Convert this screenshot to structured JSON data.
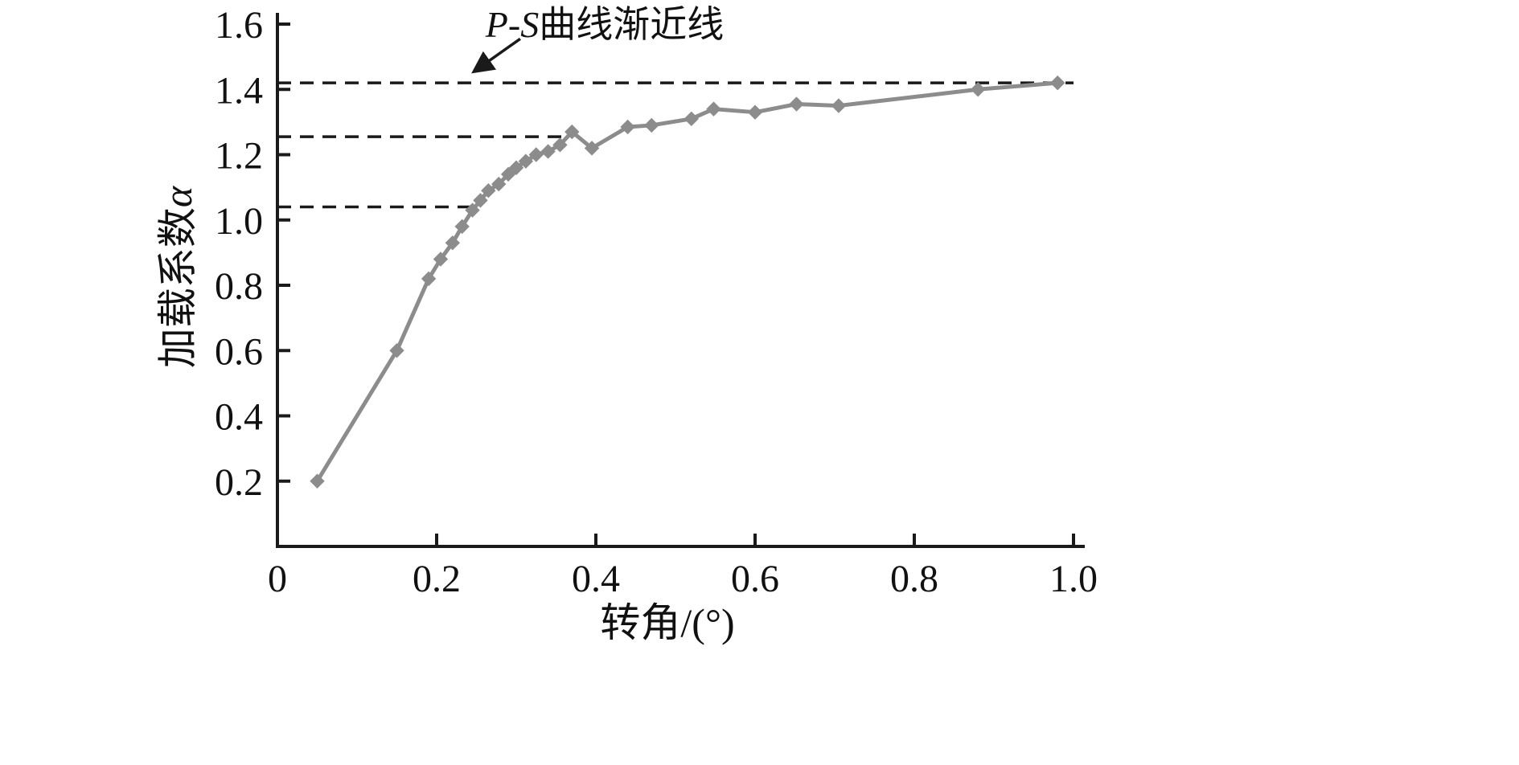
{
  "chart_data": {
    "type": "line",
    "title": "",
    "xlabel": "转角/(°)",
    "ylabel": "加载系数α",
    "ylabel_main": "加载系数",
    "ylabel_symbol": "α",
    "xlim": [
      0,
      1.0
    ],
    "ylim": [
      0,
      1.6
    ],
    "x_tick_values": [
      0,
      0.2,
      0.4,
      0.6,
      0.8,
      1.0
    ],
    "x_tick_labels": [
      "0",
      "0.2",
      "0.4",
      "0.6",
      "0.8",
      "1.0"
    ],
    "y_tick_values": [
      0.2,
      0.4,
      0.6,
      0.8,
      1.0,
      1.2,
      1.4,
      1.6
    ],
    "y_tick_labels": [
      "0.2",
      "0.4",
      "0.6",
      "0.8",
      "1.0",
      "1.2",
      "1.4",
      "1.6"
    ],
    "grid": false,
    "legend": "none",
    "annotation": {
      "italic": "P-S",
      "rest": "曲线渐近线",
      "full_text": "P-S曲线渐近线",
      "arrow_tail": [
        0.305,
        1.555
      ],
      "arrow_head": [
        0.247,
        1.455
      ]
    },
    "dashed_lines": [
      {
        "y": 1.42,
        "x_start": 0,
        "x_end": 1.0,
        "role": "asymptote"
      },
      {
        "y": 1.255,
        "x_start": 0,
        "x_end": 0.365,
        "role": "reference-upper"
      },
      {
        "y": 1.04,
        "x_start": 0,
        "x_end": 0.248,
        "role": "reference-lower"
      }
    ],
    "series": [
      {
        "name": "P-S曲线",
        "color": "#8c8c8c",
        "marker": "diamond",
        "points": [
          [
            0.05,
            0.2
          ],
          [
            0.15,
            0.6
          ],
          [
            0.19,
            0.82
          ],
          [
            0.205,
            0.88
          ],
          [
            0.22,
            0.93
          ],
          [
            0.232,
            0.98
          ],
          [
            0.245,
            1.03
          ],
          [
            0.255,
            1.06
          ],
          [
            0.265,
            1.09
          ],
          [
            0.278,
            1.11
          ],
          [
            0.29,
            1.14
          ],
          [
            0.3,
            1.16
          ],
          [
            0.312,
            1.18
          ],
          [
            0.325,
            1.2
          ],
          [
            0.34,
            1.21
          ],
          [
            0.355,
            1.23
          ],
          [
            0.37,
            1.27
          ],
          [
            0.395,
            1.22
          ],
          [
            0.44,
            1.285
          ],
          [
            0.47,
            1.29
          ],
          [
            0.52,
            1.31
          ],
          [
            0.548,
            1.34
          ],
          [
            0.6,
            1.33
          ],
          [
            0.652,
            1.355
          ],
          [
            0.705,
            1.35
          ],
          [
            0.88,
            1.4
          ],
          [
            0.98,
            1.42
          ]
        ]
      }
    ]
  },
  "colors": {
    "background": "#ffffff",
    "axis": "#1a1a1a",
    "dashed": "#1a1a1a",
    "curve": "#8c8c8c"
  }
}
